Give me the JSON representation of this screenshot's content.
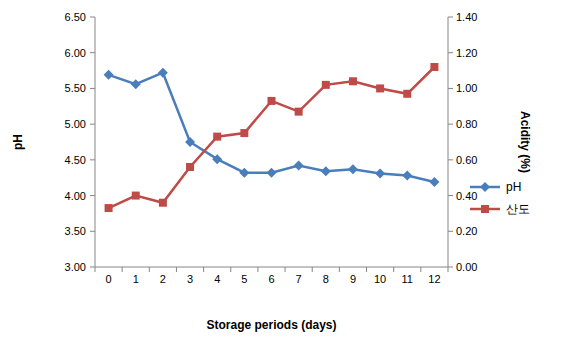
{
  "chart_data": {
    "type": "line",
    "x_label": "Storage periods (days)",
    "y_label": "pH",
    "y2_label": "Acidity (%)",
    "categories": [
      "0",
      "1",
      "2",
      "3",
      "4",
      "5",
      "6",
      "7",
      "8",
      "9",
      "10",
      "11",
      "12"
    ],
    "series": [
      {
        "name": "pH",
        "color": "#4a7ebb",
        "marker": "diamond",
        "axis": "y",
        "values": [
          5.69,
          5.56,
          5.72,
          4.75,
          4.51,
          4.32,
          4.32,
          4.42,
          4.34,
          4.37,
          4.31,
          4.28,
          4.19
        ]
      },
      {
        "name": "산도",
        "color": "#be4b48",
        "marker": "square",
        "axis": "y2",
        "values": [
          0.33,
          0.4,
          0.36,
          0.56,
          0.73,
          0.75,
          0.93,
          0.87,
          1.02,
          1.04,
          1.0,
          0.97,
          1.12
        ]
      }
    ],
    "ylim": [
      3,
      6.5
    ],
    "yticks": [
      {
        "value": 3,
        "label": "3.00"
      },
      {
        "value": 3.5,
        "label": "3.50"
      },
      {
        "value": 4,
        "label": "4.00"
      },
      {
        "value": 4.5,
        "label": "4.50"
      },
      {
        "value": 5,
        "label": "5.00"
      },
      {
        "value": 5.5,
        "label": "5.50"
      },
      {
        "value": 6,
        "label": "6.00"
      },
      {
        "value": 6.5,
        "label": "6.50"
      }
    ],
    "y2lim": [
      0,
      1.4
    ],
    "y2ticks": [
      {
        "value": 0,
        "label": "0.00"
      },
      {
        "value": 0.2,
        "label": "0.20"
      },
      {
        "value": 0.4,
        "label": "0.40"
      },
      {
        "value": 0.6,
        "label": "0.60"
      },
      {
        "value": 0.8,
        "label": "0.80"
      },
      {
        "value": 1,
        "label": "1.00"
      },
      {
        "value": 1.2,
        "label": "1.20"
      },
      {
        "value": 1.4,
        "label": "1.40"
      }
    ],
    "grid": false,
    "legend": "right"
  }
}
